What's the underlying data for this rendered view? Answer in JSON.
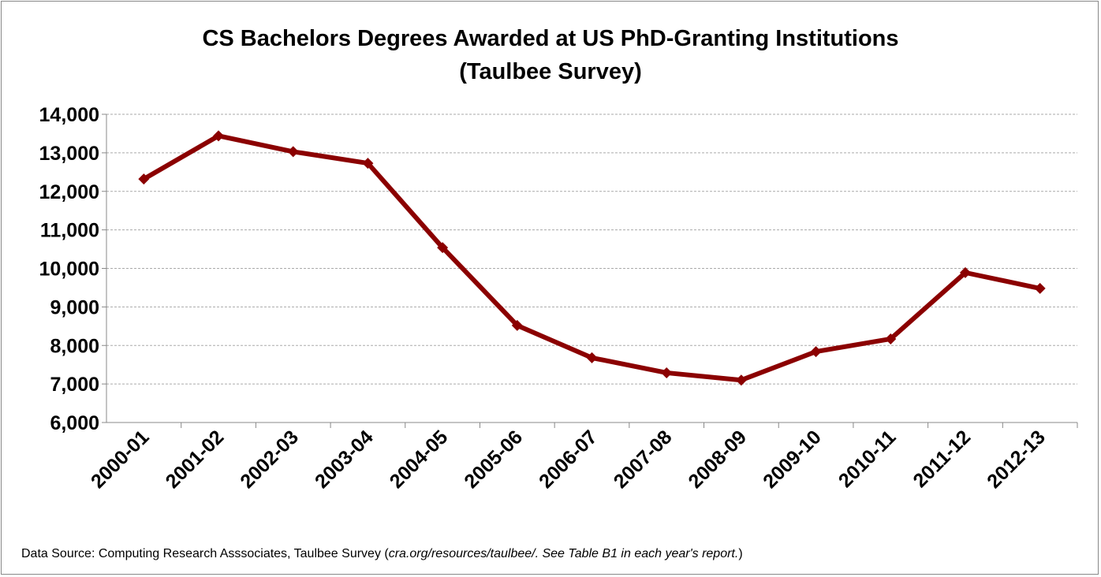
{
  "chart_data": {
    "type": "line",
    "title_line1": "CS Bachelors Degrees Awarded at US PhD-Granting Institutions",
    "title_line2": "(Taulbee Survey)",
    "categories": [
      "2000-01",
      "2001-02",
      "2002-03",
      "2003-04",
      "2004-05",
      "2005-06",
      "2006-07",
      "2007-08",
      "2008-09",
      "2009-10",
      "2010-11",
      "2011-12",
      "2012-13"
    ],
    "series": [
      {
        "name": "CS Bachelors Degrees",
        "values": [
          12320,
          13440,
          13030,
          12730,
          10540,
          8520,
          7680,
          7290,
          7100,
          7840,
          8170,
          9890,
          9480
        ],
        "color": "#8b0000"
      }
    ],
    "ylim": [
      6000,
      14000
    ],
    "yticks": [
      6000,
      7000,
      8000,
      9000,
      10000,
      11000,
      12000,
      13000,
      14000
    ],
    "ytick_labels": [
      "6,000",
      "7,000",
      "8,000",
      "9,000",
      "10,000",
      "11,000",
      "12,000",
      "13,000",
      "14,000"
    ],
    "grid": true,
    "xlabel": "",
    "ylabel": ""
  },
  "footnote": {
    "prefix": "Data Source: Computing Research Asssociates, Taulbee Survey (",
    "italic": "cra.org/resources/taulbee/.  See Table B1 in each year's report.",
    "suffix": ")"
  }
}
